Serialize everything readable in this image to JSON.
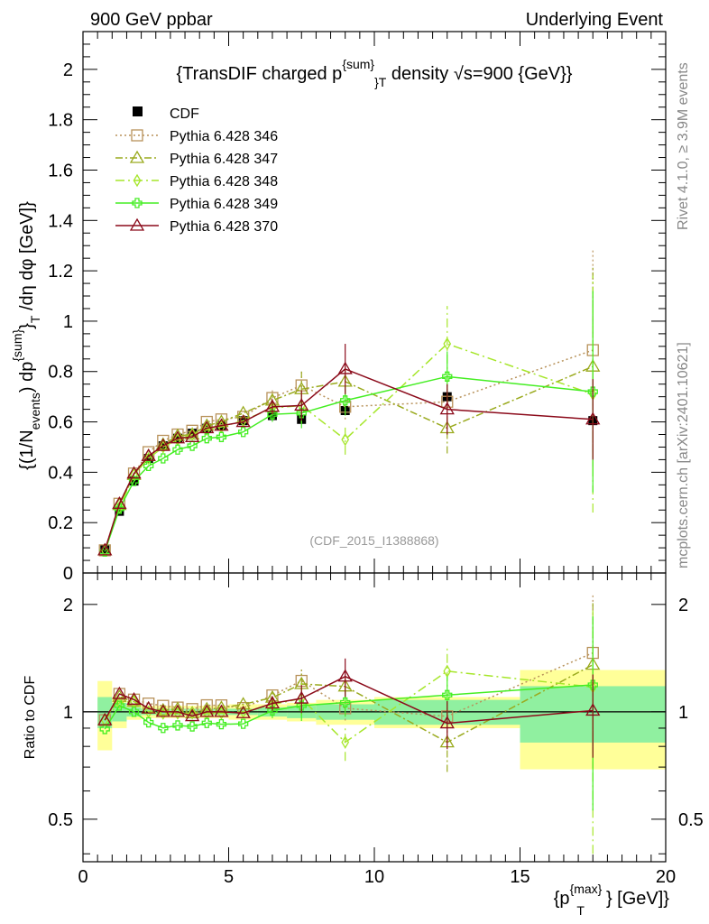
{
  "header": {
    "left": "900 GeV ppbar",
    "right": "Underlying Event"
  },
  "side_text": {
    "top": "Rivet 4.1.0, ≥ 3.9M events",
    "bottom": "mcplots.cern.ch [arXiv:2401.10621]"
  },
  "colors": {
    "cdf": "#000000",
    "p346": "#b8925a",
    "p347": "#9aaa1e",
    "p348": "#a6e62a",
    "p349": "#44ee22",
    "p370": "#8b0a1a",
    "band_green": "#90f0a0",
    "band_yellow": "#ffff99"
  },
  "chart_data": {
    "type": "line",
    "title": "{TransDIF charged p{sum}T density √s=900 {GeV}}",
    "title_parts": {
      "pre": "{TransDIF charged p",
      "sup": "{sum}",
      "sub": "}T",
      "post": " density √s=900 {GeV}}"
    },
    "watermark": "(CDF_2015_I1388868)",
    "xlabel": "{pT{max}} [GeV]}",
    "xlabel_parts": {
      "pre": "{p",
      "sup": "{max}",
      "sub": "T",
      "post": "} [GeV]}"
    },
    "ylabel": "{(1/Nevents) dp{sum}T/dη dφ [GeV]}",
    "ylabel_parts": {
      "a": "{(1/N",
      "a_sub": "events",
      "b": ") dp",
      "b_sup": "{sum}",
      "c": "}",
      "c_sub": "T",
      "d": " /dη  dφ [GeV]}"
    },
    "ratio_ylabel": "Ratio to CDF",
    "xlim": [
      0,
      20
    ],
    "ylim": [
      0,
      2.15
    ],
    "ratio_ylim": [
      0.38,
      2.45
    ],
    "x_ticks": [
      "0",
      "5",
      "10",
      "15",
      "20"
    ],
    "x_tick_values": [
      0,
      5,
      10,
      15,
      20
    ],
    "y_ticks": [
      "0",
      "0.2",
      "0.4",
      "0.6",
      "0.8",
      "1",
      "1.2",
      "1.4",
      "1.6",
      "1.8",
      "2"
    ],
    "y_tick_values": [
      0,
      0.2,
      0.4,
      0.6,
      0.8,
      1.0,
      1.2,
      1.4,
      1.6,
      1.8,
      2.0
    ],
    "ratio_ticks": [
      "0.5",
      "1",
      "2"
    ],
    "ratio_tick_values": [
      0.5,
      1,
      2
    ],
    "x": [
      0.75,
      1.25,
      1.75,
      2.25,
      2.75,
      3.25,
      3.75,
      4.25,
      4.75,
      5.5,
      6.5,
      7.5,
      9.0,
      12.5,
      17.5
    ],
    "x_bins": [
      [
        0.5,
        1.0
      ],
      [
        1.0,
        1.5
      ],
      [
        1.5,
        2.0
      ],
      [
        2.0,
        2.5
      ],
      [
        2.5,
        3.0
      ],
      [
        3.0,
        3.5
      ],
      [
        3.5,
        4.0
      ],
      [
        4.0,
        4.5
      ],
      [
        4.5,
        5.0
      ],
      [
        5.0,
        6.0
      ],
      [
        6.0,
        7.0
      ],
      [
        7.0,
        8.0
      ],
      [
        8.0,
        10.0
      ],
      [
        10.0,
        15.0
      ],
      [
        15.0,
        20.0
      ]
    ],
    "cdf": {
      "name": "CDF",
      "values": [
        0.095,
        0.245,
        0.365,
        0.455,
        0.505,
        0.535,
        0.555,
        0.575,
        0.585,
        0.605,
        0.625,
        0.61,
        0.645,
        0.7,
        0.605
      ],
      "band_stat": [
        0.1,
        0.06,
        0.03,
        0.02,
        0.02,
        0.02,
        0.02,
        0.02,
        0.02,
        0.02,
        0.03,
        0.04,
        0.05,
        0.08,
        0.18
      ],
      "band_total": [
        0.22,
        0.1,
        0.05,
        0.04,
        0.04,
        0.04,
        0.04,
        0.04,
        0.04,
        0.05,
        0.05,
        0.06,
        0.08,
        0.1,
        0.31
      ]
    },
    "series": [
      {
        "name": "Pythia 6.428 346",
        "key": "p346",
        "values": [
          0.09,
          0.275,
          0.395,
          0.48,
          0.525,
          0.55,
          0.565,
          0.6,
          0.61,
          0.62,
          0.695,
          0.745,
          0.66,
          0.68,
          0.885
        ],
        "err": [
          0,
          0,
          0,
          0,
          0,
          0,
          0,
          0,
          0,
          0,
          0.03,
          0.06,
          0.05,
          0.1,
          0.4
        ]
      },
      {
        "name": "Pythia 6.428 347",
        "key": "p347",
        "values": [
          0.09,
          0.27,
          0.39,
          0.465,
          0.51,
          0.545,
          0.55,
          0.585,
          0.6,
          0.635,
          0.685,
          0.73,
          0.76,
          0.575,
          0.82
        ],
        "err": [
          0,
          0,
          0,
          0,
          0,
          0,
          0,
          0,
          0,
          0,
          0.03,
          0.07,
          0.06,
          0.1,
          0.4
        ]
      },
      {
        "name": "Pythia 6.428 348",
        "key": "p348",
        "values": [
          0.09,
          0.26,
          0.39,
          0.455,
          0.5,
          0.53,
          0.55,
          0.57,
          0.58,
          0.605,
          0.655,
          0.665,
          0.53,
          0.91,
          0.71
        ],
        "err": [
          0,
          0,
          0,
          0,
          0,
          0,
          0,
          0,
          0,
          0,
          0.03,
          0.07,
          0.06,
          0.15,
          0.47
        ]
      },
      {
        "name": "Pythia 6.428 349",
        "key": "p349",
        "values": [
          0.085,
          0.255,
          0.365,
          0.425,
          0.455,
          0.49,
          0.505,
          0.535,
          0.54,
          0.56,
          0.63,
          0.635,
          0.685,
          0.78,
          0.72
        ],
        "err": [
          0,
          0,
          0,
          0,
          0,
          0,
          0,
          0,
          0,
          0,
          0.03,
          0.06,
          0.06,
          0.1,
          0.4
        ]
      },
      {
        "name": "Pythia 6.428 370",
        "key": "p370",
        "values": [
          0.09,
          0.275,
          0.395,
          0.465,
          0.505,
          0.535,
          0.54,
          0.575,
          0.585,
          0.6,
          0.66,
          0.665,
          0.81,
          0.65,
          0.61
        ],
        "err": [
          0,
          0,
          0,
          0,
          0,
          0,
          0,
          0,
          0,
          0,
          0.03,
          0.06,
          0.1,
          0.1,
          0.16
        ]
      }
    ],
    "legend_position": "top-left"
  }
}
